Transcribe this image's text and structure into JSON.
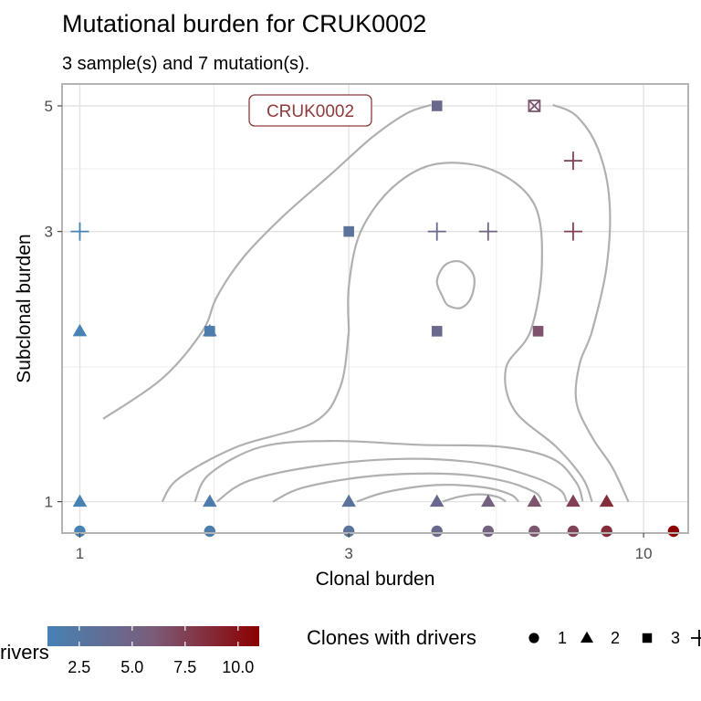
{
  "chart_data": {
    "type": "scatter",
    "title": "Mutational burden for  CRUK0002",
    "subtitle": "3 sample(s) and 7 mutation(s).",
    "xlabel": "Clonal burden",
    "ylabel": "Subclonal burden",
    "x_scale": "log",
    "y_scale": "log",
    "xlim": [
      0.93,
      12
    ],
    "ylim": [
      0.955,
      5.0
    ],
    "x_ticks": [
      1,
      3,
      10
    ],
    "y_ticks": [
      1,
      3,
      5
    ],
    "grid": true,
    "annotation": {
      "text": "CRUK0002",
      "x": 2.3,
      "y": 5
    },
    "color_scale": {
      "title": "rivers",
      "ticks": [
        "2.5",
        "5.0",
        "7.5",
        "10.0"
      ],
      "low_color": "#4682b4",
      "high_color": "#8b0000",
      "range": [
        1,
        11
      ]
    },
    "shape_legend": {
      "title": "Clones with drivers",
      "entries": [
        {
          "label": "1",
          "shape": "circle"
        },
        {
          "label": "2",
          "shape": "triangle"
        },
        {
          "label": "3",
          "shape": "square"
        },
        {
          "label": "",
          "shape": "plus"
        }
      ]
    },
    "points": [
      {
        "x": 1,
        "y": 0.96,
        "shape": "circle"
      },
      {
        "x": 1.7,
        "y": 0.96,
        "shape": "circle"
      },
      {
        "x": 3,
        "y": 0.96,
        "shape": "circle"
      },
      {
        "x": 4.3,
        "y": 0.96,
        "shape": "circle"
      },
      {
        "x": 5.3,
        "y": 0.96,
        "shape": "circle"
      },
      {
        "x": 6.4,
        "y": 0.96,
        "shape": "circle"
      },
      {
        "x": 7.5,
        "y": 0.96,
        "shape": "circle"
      },
      {
        "x": 8.6,
        "y": 0.96,
        "shape": "circle"
      },
      {
        "x": 11.3,
        "y": 0.96,
        "shape": "circle"
      },
      {
        "x": 1,
        "y": 1,
        "shape": "triangle"
      },
      {
        "x": 1.7,
        "y": 1,
        "shape": "triangle"
      },
      {
        "x": 3,
        "y": 1,
        "shape": "triangle"
      },
      {
        "x": 4.3,
        "y": 1,
        "shape": "triangle"
      },
      {
        "x": 5.3,
        "y": 1,
        "shape": "triangle"
      },
      {
        "x": 6.4,
        "y": 1,
        "shape": "triangle"
      },
      {
        "x": 7.5,
        "y": 1,
        "shape": "triangle"
      },
      {
        "x": 8.6,
        "y": 1,
        "shape": "triangle"
      },
      {
        "x": 1,
        "y": 2,
        "shape": "triangle"
      },
      {
        "x": 1.7,
        "y": 2,
        "shape": "triangle"
      },
      {
        "x": 1.7,
        "y": 2,
        "shape": "square"
      },
      {
        "x": 4.3,
        "y": 2,
        "shape": "square"
      },
      {
        "x": 6.5,
        "y": 2,
        "shape": "square"
      },
      {
        "x": 1,
        "y": 3,
        "shape": "plus"
      },
      {
        "x": 3,
        "y": 3,
        "shape": "square"
      },
      {
        "x": 4.3,
        "y": 3,
        "shape": "plus"
      },
      {
        "x": 5.3,
        "y": 3,
        "shape": "plus"
      },
      {
        "x": 7.5,
        "y": 3,
        "shape": "plus"
      },
      {
        "x": 7.5,
        "y": 4,
        "shape": "plus"
      },
      {
        "x": 4.3,
        "y": 5,
        "shape": "square"
      },
      {
        "x": 6.4,
        "y": 5,
        "shape": "boxcross"
      }
    ],
    "density_contours": [
      [
        [
          1.1,
          1.4
        ],
        [
          1.4,
          1.65
        ],
        [
          1.65,
          2.0
        ],
        [
          1.75,
          2.3
        ],
        [
          1.95,
          2.7
        ],
        [
          2.3,
          3.2
        ],
        [
          2.8,
          3.8
        ],
        [
          3.3,
          4.4
        ],
        [
          3.8,
          4.85
        ],
        [
          4.2,
          5.02
        ]
      ],
      [
        [
          6.9,
          5.02
        ],
        [
          7.6,
          4.8
        ],
        [
          8.3,
          4.2
        ],
        [
          8.7,
          3.4
        ],
        [
          8.6,
          2.6
        ],
        [
          8.1,
          2.0
        ],
        [
          7.7,
          1.75
        ],
        [
          7.6,
          1.5
        ],
        [
          8.1,
          1.3
        ],
        [
          8.8,
          1.15
        ],
        [
          9.4,
          1.0
        ]
      ],
      [
        [
          3.0,
          2.0
        ],
        [
          3.0,
          2.4
        ],
        [
          3.15,
          3.0
        ],
        [
          3.6,
          3.6
        ],
        [
          4.3,
          3.95
        ],
        [
          5.4,
          3.85
        ],
        [
          6.4,
          3.35
        ],
        [
          6.6,
          2.6
        ],
        [
          6.3,
          2.0
        ],
        [
          5.7,
          1.72
        ],
        [
          5.9,
          1.45
        ],
        [
          7.0,
          1.25
        ],
        [
          7.8,
          1.1
        ],
        [
          8.1,
          1.0
        ]
      ],
      [
        [
          3.0,
          2.0
        ],
        [
          2.9,
          1.6
        ],
        [
          2.6,
          1.38
        ],
        [
          1.9,
          1.25
        ],
        [
          1.5,
          1.1
        ],
        [
          1.4,
          1.0
        ]
      ],
      [
        [
          1.6,
          1.0
        ],
        [
          1.7,
          1.12
        ],
        [
          2.1,
          1.25
        ],
        [
          2.8,
          1.28
        ],
        [
          4.0,
          1.26
        ],
        [
          5.6,
          1.25
        ],
        [
          6.9,
          1.19
        ],
        [
          7.6,
          1.08
        ],
        [
          7.8,
          1.0
        ]
      ],
      [
        [
          1.75,
          1.0
        ],
        [
          2.0,
          1.09
        ],
        [
          2.7,
          1.16
        ],
        [
          3.8,
          1.19
        ],
        [
          5.1,
          1.17
        ],
        [
          6.3,
          1.11
        ],
        [
          7.1,
          1.05
        ],
        [
          7.3,
          1.0
        ]
      ],
      [
        [
          2.2,
          1.0
        ],
        [
          2.5,
          1.06
        ],
        [
          3.3,
          1.11
        ],
        [
          4.5,
          1.12
        ],
        [
          5.6,
          1.09
        ],
        [
          6.4,
          1.04
        ],
        [
          6.6,
          1.0
        ]
      ],
      [
        [
          3.1,
          1.0
        ],
        [
          3.5,
          1.04
        ],
        [
          4.3,
          1.07
        ],
        [
          5.2,
          1.06
        ],
        [
          5.8,
          1.03
        ],
        [
          6.0,
          1.0
        ]
      ],
      [
        [
          4.4,
          1.0
        ],
        [
          4.7,
          1.02
        ],
        [
          5.1,
          1.03
        ],
        [
          5.5,
          1.02
        ],
        [
          5.7,
          1.0
        ]
      ],
      [
        [
          4.4,
          2.3
        ],
        [
          4.3,
          2.45
        ],
        [
          4.45,
          2.62
        ],
        [
          4.75,
          2.65
        ],
        [
          5.0,
          2.5
        ],
        [
          4.95,
          2.3
        ],
        [
          4.75,
          2.2
        ],
        [
          4.5,
          2.22
        ],
        [
          4.4,
          2.3
        ]
      ]
    ]
  }
}
